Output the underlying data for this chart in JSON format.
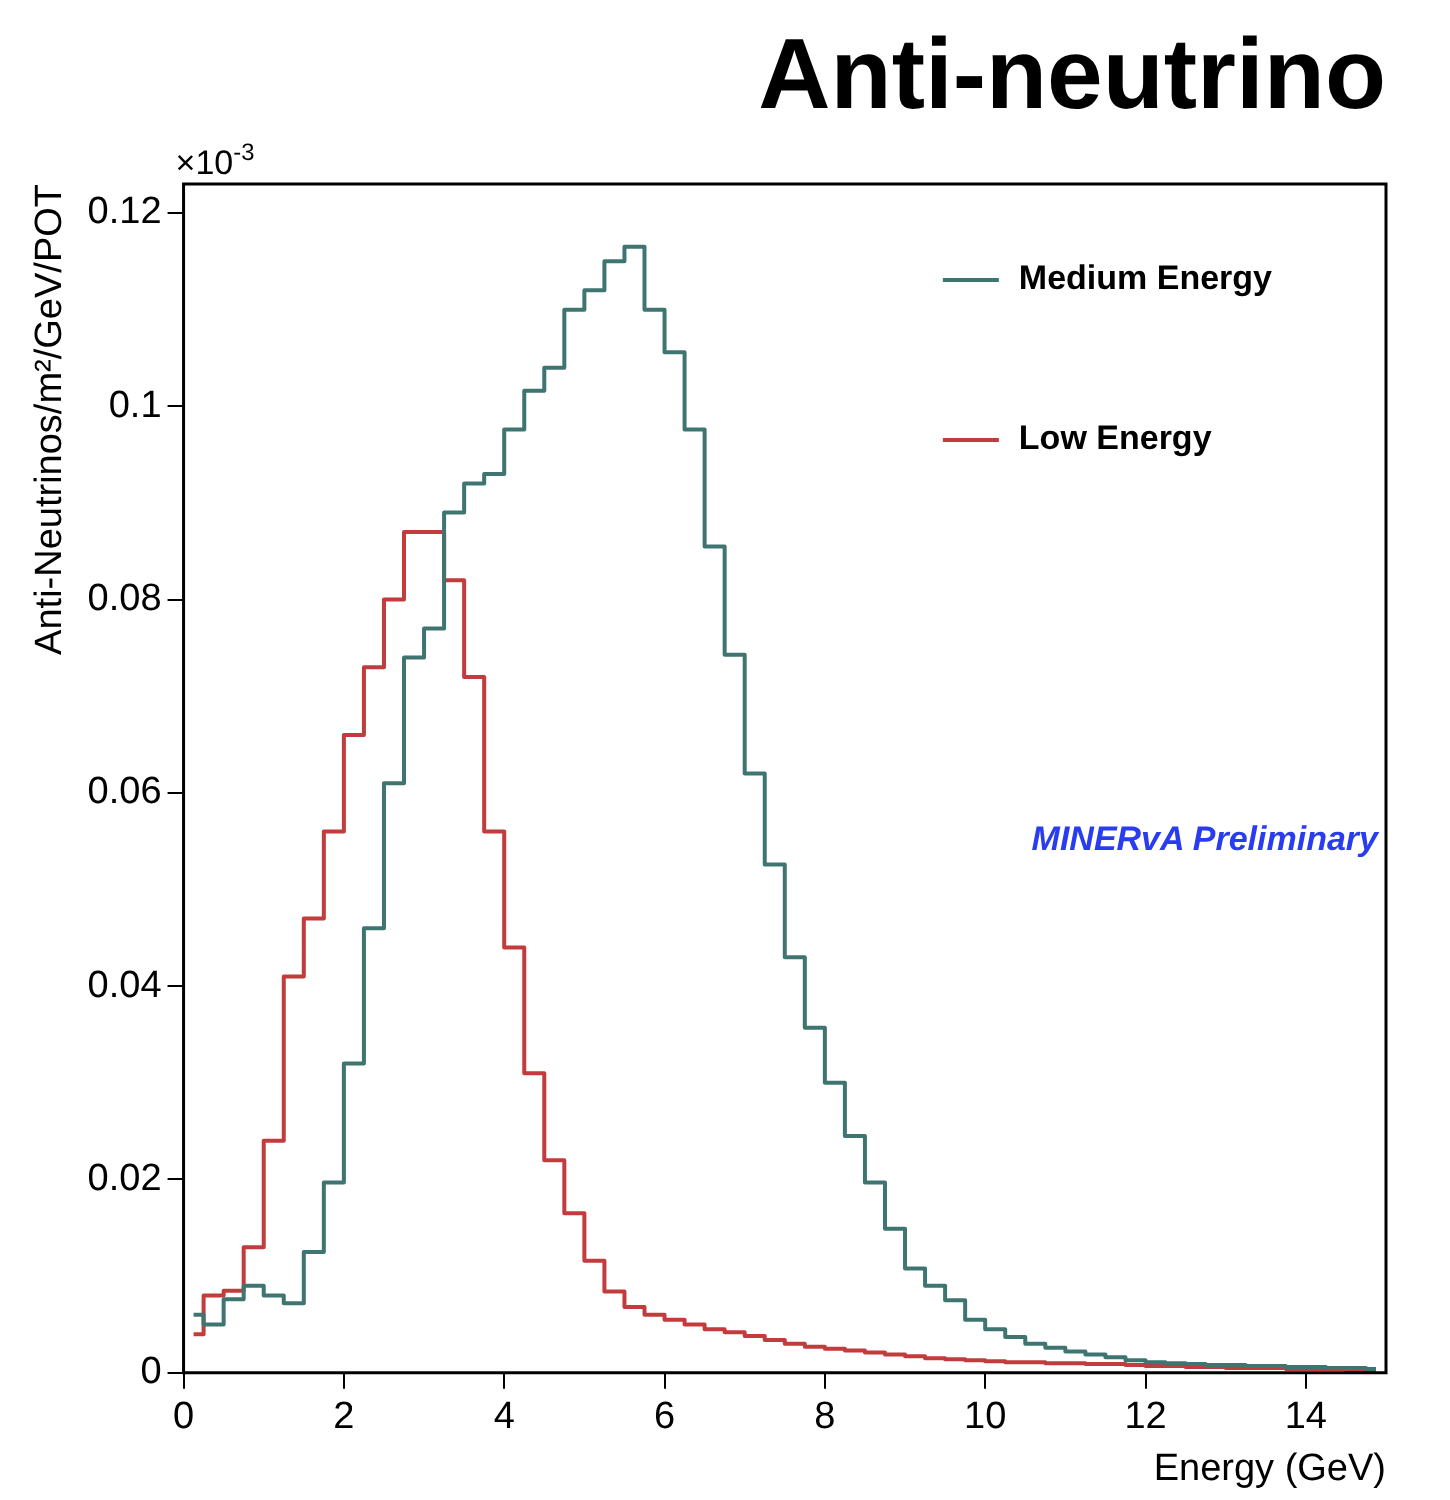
{
  "chart_data": {
    "type": "step",
    "title": "Anti-neutrino",
    "xlabel": "Energy (GeV)",
    "ylabel": "Anti-Neutrinos/m²/GeV/POT",
    "x": [
      0.125,
      0.375,
      0.625,
      0.875,
      1.125,
      1.375,
      1.625,
      1.875,
      2.125,
      2.375,
      2.625,
      2.875,
      3.125,
      3.375,
      3.625,
      3.875,
      4.125,
      4.375,
      4.625,
      4.875,
      5.125,
      5.375,
      5.625,
      5.875,
      6.125,
      6.375,
      6.625,
      6.875,
      7.125,
      7.375,
      7.625,
      7.875,
      8.125,
      8.375,
      8.625,
      8.875,
      9.125,
      9.375,
      9.625,
      9.875,
      10.125,
      10.375,
      10.625,
      10.875,
      11.125,
      11.375,
      11.625,
      11.875,
      12.125,
      12.375,
      12.625,
      12.875,
      13.125,
      13.375,
      13.625,
      13.875,
      14.125,
      14.375,
      14.625,
      14.875
    ],
    "series": [
      {
        "name": "Medium Energy",
        "color": "#3f7570",
        "values": [
          0.006,
          0.005,
          0.0076,
          0.009,
          0.008,
          0.0072,
          0.0125,
          0.0197,
          0.032,
          0.046,
          0.061,
          0.074,
          0.077,
          0.089,
          0.092,
          0.093,
          0.0976,
          0.1016,
          0.104,
          0.11,
          0.112,
          0.115,
          0.1165,
          0.11,
          0.1056,
          0.0976,
          0.0855,
          0.0743,
          0.062,
          0.0526,
          0.043,
          0.0357,
          0.03,
          0.0245,
          0.0197,
          0.0149,
          0.0108,
          0.009,
          0.0075,
          0.0055,
          0.0045,
          0.0037,
          0.003,
          0.0026,
          0.0022,
          0.0019,
          0.0016,
          0.0013,
          0.0011,
          0.001,
          0.0009,
          0.0008,
          0.0008,
          0.0007,
          0.0007,
          0.0006,
          0.0006,
          0.0005,
          0.0005,
          0.0004
        ]
      },
      {
        "name": "Low Energy",
        "color": "#c23b3d",
        "values": [
          0.004,
          0.008,
          0.0085,
          0.013,
          0.024,
          0.041,
          0.047,
          0.056,
          0.066,
          0.073,
          0.08,
          0.087,
          0.087,
          0.082,
          0.072,
          0.056,
          0.044,
          0.031,
          0.022,
          0.0165,
          0.0116,
          0.0084,
          0.0068,
          0.006,
          0.0055,
          0.005,
          0.0045,
          0.0042,
          0.0038,
          0.0034,
          0.003,
          0.0027,
          0.0025,
          0.0023,
          0.0021,
          0.0019,
          0.0017,
          0.0015,
          0.0014,
          0.0013,
          0.0012,
          0.0011,
          0.0011,
          0.001,
          0.001,
          0.0009,
          0.0009,
          0.0008,
          0.0007,
          0.0007,
          0.0006,
          0.0006,
          0.0005,
          0.0005,
          0.0005,
          0.0004,
          0.0004,
          0.0004,
          0.0003,
          0.0003
        ]
      }
    ],
    "xlim": [
      0,
      15
    ],
    "xticks": [
      0,
      2,
      4,
      6,
      8,
      10,
      12,
      14
    ],
    "ylim": [
      0,
      0.123
    ],
    "yticks": [
      0,
      0.02,
      0.04,
      0.06,
      0.08,
      0.1,
      0.12
    ],
    "grid": false,
    "legend": "top right",
    "annotations": [
      "×10$^{-3}$",
      "MINERvA Preliminary"
    ]
  }
}
